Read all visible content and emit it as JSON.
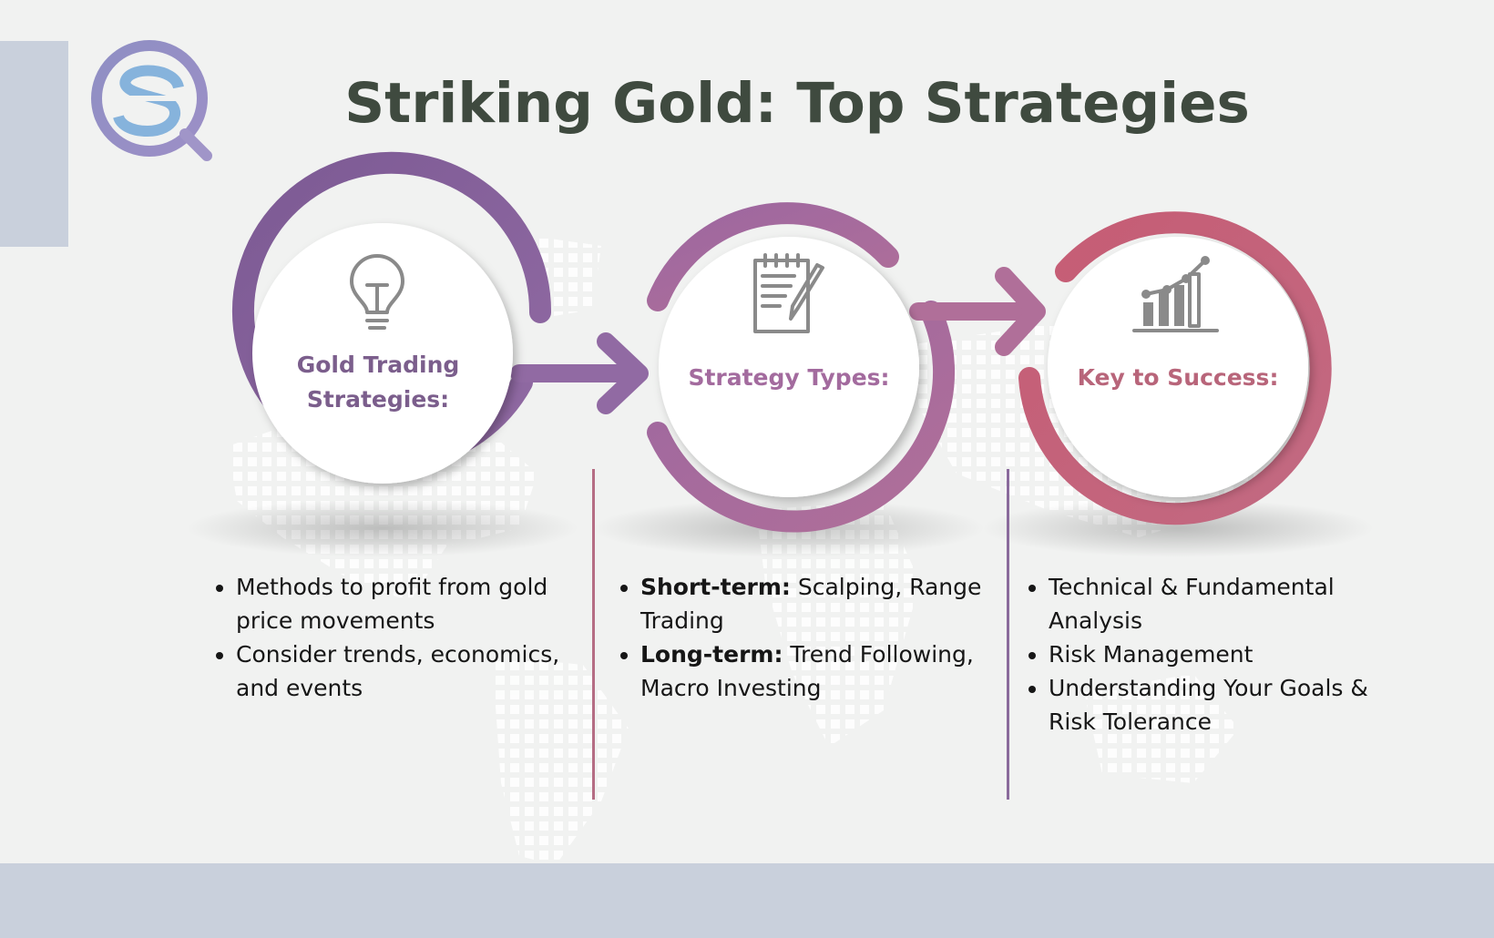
{
  "title": "Striking Gold: Top Strategies",
  "colors": {
    "background": "#f1f2f1",
    "accent_panel": "#c9d0dc",
    "title": "#3f4a3f",
    "purple": "#85609a",
    "mauve": "#a2679b",
    "rose": "#c1607a"
  },
  "logo": {
    "icon": "magnifier-s-logo"
  },
  "steps": [
    {
      "label_line1": "Gold Trading",
      "label_line2": "Strategies:",
      "icon": "lightbulb-icon",
      "color": "#85609a",
      "bullets": [
        {
          "text": "Methods to profit from gold price movements"
        },
        {
          "text": "Consider trends, economics, and events"
        }
      ]
    },
    {
      "label_line1": "Strategy Types:",
      "icon": "notepad-pencil-icon",
      "color": "#a2679b",
      "bullets": [
        {
          "bold": "Short-term:",
          "text": " Scalping, Range Trading"
        },
        {
          "bold": "Long-term:",
          "text": " Trend Following, Macro Investing"
        }
      ]
    },
    {
      "label_line1": "Key to Success:",
      "icon": "growth-chart-icon",
      "color": "#c1607a",
      "bullets": [
        {
          "text": "Technical & Fundamental Analysis"
        },
        {
          "text": "Risk Management"
        },
        {
          "text": "Understanding Your Goals & Risk Tolerance"
        }
      ]
    }
  ]
}
